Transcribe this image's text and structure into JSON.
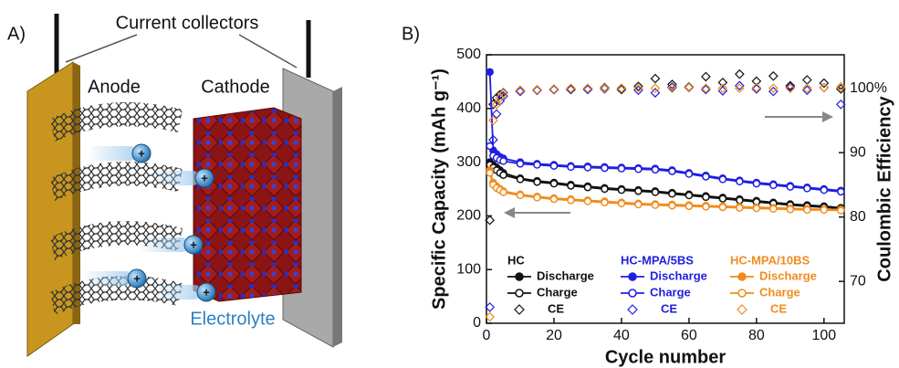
{
  "panel_a": {
    "label": "A)",
    "collectors": "Current collectors",
    "anode": "Anode",
    "cathode": "Cathode",
    "electrolyte": "Electrolyte",
    "ion": "+"
  },
  "chart_data": {
    "type": "line",
    "label": "B)",
    "xlabel": "Cycle number",
    "ylabel": "Specific Capacity (mAh g⁻¹)",
    "y2label": "Coulombic Efficiency",
    "x": [
      1,
      2,
      3,
      4,
      5,
      10,
      15,
      20,
      25,
      30,
      35,
      40,
      45,
      50,
      55,
      60,
      65,
      70,
      75,
      80,
      85,
      90,
      95,
      100,
      105
    ],
    "xlim": [
      0,
      106
    ],
    "xticks": [
      0,
      20,
      40,
      60,
      80,
      100
    ],
    "ylim": [
      0,
      500
    ],
    "yticks": [
      0,
      100,
      200,
      300,
      400,
      500
    ],
    "y2lim": [
      63.5,
      105.2
    ],
    "y2ticks": [
      70,
      80,
      90,
      {
        "value": 100,
        "label": "100%"
      }
    ],
    "legend_groups": [
      "HC",
      "HC-MPA/5BS",
      "HC-MPA/10BS"
    ],
    "series": [
      {
        "name": "Discharge",
        "color": "#111111",
        "marker": "filled-circle",
        "values": [
          300,
          295,
          290,
          285,
          280,
          270,
          265,
          262,
          258,
          255,
          252,
          250,
          248,
          246,
          243,
          240,
          237,
          234,
          231,
          228,
          225,
          222,
          220,
          218,
          215
        ]
      },
      {
        "name": "Charge",
        "color": "#111111",
        "marker": "open-circle",
        "values": [
          295,
          290,
          285,
          280,
          276,
          268,
          263,
          260,
          256,
          253,
          250,
          248,
          246,
          244,
          241,
          238,
          235,
          232,
          229,
          226,
          223,
          220,
          218,
          216,
          214
        ]
      },
      {
        "name": "CE",
        "color": "#111111",
        "marker": "diamond",
        "axis": "y2",
        "values": [
          79.5,
          97.5,
          98.5,
          99,
          99.3,
          99.6,
          99.7,
          99.8,
          99.8,
          99.9,
          100.1,
          99.8,
          100.3,
          101.5,
          100.6,
          100.2,
          101.8,
          100.9,
          102.2,
          101.1,
          101.9,
          100.4,
          101.3,
          100.8,
          99.9
        ]
      },
      {
        "name": "Discharge",
        "color": "#1f1fe0",
        "marker": "filled-circle",
        "values": [
          468,
          322,
          315,
          310,
          307,
          300,
          297,
          295,
          293,
          292,
          291,
          290,
          289,
          288,
          285,
          280,
          275,
          270,
          266,
          262,
          259,
          256,
          253,
          250,
          247
        ]
      },
      {
        "name": "Charge",
        "color": "#1f1fe0",
        "marker": "open-circle",
        "values": [
          330,
          312,
          308,
          304,
          302,
          297,
          295,
          293,
          291,
          290,
          289,
          288,
          287,
          286,
          283,
          278,
          273,
          268,
          264,
          260,
          257,
          254,
          251,
          248,
          245
        ]
      },
      {
        "name": "CE",
        "color": "#1f1fe0",
        "marker": "diamond",
        "axis": "y2",
        "values": [
          66,
          92,
          96,
          98,
          98.8,
          99.5,
          99.7,
          99.8,
          99.9,
          99.8,
          99.9,
          100,
          99.7,
          99.3,
          100.2,
          100.1,
          99.8,
          99.6,
          100.4,
          99.9,
          99.5,
          100.2,
          99.7,
          100.1,
          97.5
        ]
      },
      {
        "name": "Discharge",
        "color": "#f08c1e",
        "marker": "filled-circle",
        "values": [
          285,
          262,
          255,
          250,
          246,
          240,
          236,
          233,
          231,
          229,
          227,
          225,
          223,
          222,
          221,
          220,
          219,
          218,
          217,
          216,
          215,
          214,
          213,
          212,
          212
        ]
      },
      {
        "name": "Charge",
        "color": "#f08c1e",
        "marker": "open-circle",
        "values": [
          280,
          258,
          252,
          248,
          244,
          238,
          234,
          231,
          229,
          227,
          225,
          223,
          221,
          220,
          219,
          218,
          217,
          216,
          215,
          214,
          213,
          212,
          211,
          211,
          210
        ]
      },
      {
        "name": "CE",
        "color": "#f08c1e",
        "marker": "diamond",
        "axis": "y2",
        "values": [
          64.5,
          95,
          97.5,
          98.5,
          99.2,
          99.7,
          99.8,
          99.9,
          100,
          100,
          100,
          100,
          100.1,
          100,
          100,
          100.1,
          100,
          100,
          100,
          100.1,
          100,
          100,
          100,
          100.1,
          100.2
        ]
      }
    ]
  }
}
